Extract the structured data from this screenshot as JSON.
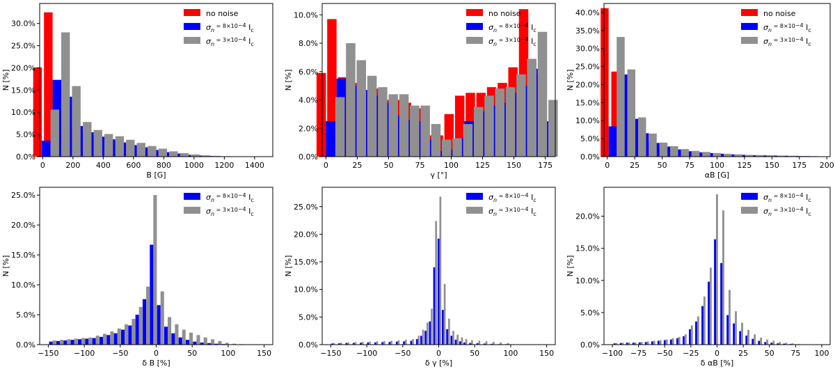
{
  "figure": {
    "rows": 2,
    "cols": 3
  },
  "legend_labels": {
    "no_noise": "no noise",
    "sigma_8": "σn = 8×10⁻⁴ Ic",
    "sigma_3": "σn = 3×10⁻⁴ Ic"
  },
  "colors": {
    "no_noise": "#ff0000",
    "sigma_8": "#0000ff",
    "sigma_3": "#909090"
  },
  "chart_data": [
    {
      "type": "bar",
      "id": "B",
      "xlabel": "B [G]",
      "ylabel": "N [%]",
      "xlim": [
        -20,
        1520
      ],
      "ylim": [
        0,
        34.5
      ],
      "xticks": [
        0,
        200,
        400,
        600,
        800,
        1000,
        1200,
        1400
      ],
      "yticks": [
        0,
        5,
        10,
        15,
        20,
        25,
        30
      ],
      "bin_width": 57,
      "legend_position": "top-right",
      "series": [
        {
          "name": "no noise",
          "key": "no_noise",
          "x": [
            23,
            94,
            165,
            237,
            308,
            379,
            451,
            522,
            593,
            665,
            736,
            807,
            879,
            950,
            1021,
            1093,
            1164,
            1235,
            1306,
            1378,
            1449
          ],
          "values": [
            20.1,
            32.5,
            12.6,
            6.1,
            5.4,
            4.6,
            4.3,
            3.6,
            2.9,
            2.2,
            1.6,
            1.0,
            0.7,
            0.4,
            0.2,
            0.15,
            0.08,
            0.04,
            0.02,
            0.01,
            0.01
          ]
        },
        {
          "name": "σn = 8×10⁻⁴ Ic",
          "key": "sigma_8",
          "x": [
            23,
            94,
            165,
            237,
            308,
            379,
            451,
            522,
            593,
            665,
            736,
            807,
            879,
            950,
            1021,
            1093,
            1164,
            1235,
            1306,
            1378,
            1449
          ],
          "values": [
            3.6,
            17.3,
            13.5,
            6.9,
            5.5,
            4.5,
            3.9,
            3.2,
            2.6,
            2.1,
            1.5,
            1.0,
            0.7,
            0.4,
            0.25,
            0.15,
            0.08,
            0.04,
            0.02,
            0.01,
            0.01
          ]
        },
        {
          "name": "σn = 3×10⁻⁴ Ic",
          "key": "sigma_3",
          "x": [
            23,
            94,
            165,
            237,
            308,
            379,
            451,
            522,
            593,
            665,
            736,
            807,
            879,
            950,
            1021,
            1093,
            1164,
            1235,
            1306,
            1378,
            1449
          ],
          "values": [
            10.6,
            28.0,
            15.9,
            7.8,
            6.0,
            5.1,
            4.6,
            3.8,
            3.1,
            2.4,
            1.8,
            1.2,
            0.8,
            0.5,
            0.3,
            0.18,
            0.1,
            0.05,
            0.03,
            0.01,
            0.01
          ]
        }
      ]
    },
    {
      "type": "bar",
      "id": "gamma",
      "xlabel": "γ [°]",
      "ylabel": "N [%]",
      "xlim": [
        -3,
        183
      ],
      "ylim": [
        0,
        10.8
      ],
      "xticks": [
        0,
        25,
        50,
        75,
        100,
        125,
        150,
        175
      ],
      "yticks": [
        0,
        2,
        4,
        6,
        8,
        10
      ],
      "bin_width": 7.5,
      "legend_position": "top-right",
      "series": [
        {
          "name": "no noise",
          "key": "no_noise",
          "x": [
            3.75,
            12.25,
            20.75,
            29.25,
            37.75,
            46.25,
            54.75,
            63.25,
            71.75,
            80.25,
            88.75,
            97.25,
            105.75,
            114.25,
            122.75,
            131.25,
            139.75,
            148.25,
            156.75,
            165.25,
            173.75
          ],
          "values": [
            5.9,
            9.7,
            5.6,
            5.2,
            4.7,
            4.8,
            4.0,
            4.0,
            3.8,
            3.4,
            1.5,
            1.5,
            3.0,
            4.3,
            4.5,
            4.5,
            4.9,
            5.2,
            6.3,
            10.4,
            5.8
          ]
        },
        {
          "name": "σn = 8×10⁻⁴ Ic",
          "key": "sigma_8",
          "x": [
            3.75,
            12.25,
            20.75,
            29.25,
            37.75,
            46.25,
            54.75,
            63.25,
            71.75,
            80.25,
            88.75,
            97.25,
            105.75,
            114.25,
            122.75,
            131.25,
            139.75,
            148.25,
            156.75,
            165.25,
            173.75
          ],
          "values": [
            2.5,
            5.5,
            5.0,
            4.7,
            4.3,
            3.8,
            2.9,
            2.6,
            2.5,
            1.2,
            0.4,
            0.5,
            1.3,
            2.5,
            3.2,
            3.6,
            3.8,
            4.5,
            5.0,
            6.2,
            2.5
          ]
        },
        {
          "name": "σn = 3×10⁻⁴ Ic",
          "key": "sigma_3",
          "x": [
            3.75,
            12.25,
            20.75,
            29.25,
            37.75,
            46.25,
            54.75,
            63.25,
            71.75,
            80.25,
            88.75,
            97.25,
            105.75,
            114.25,
            122.75,
            131.25,
            139.75,
            148.25,
            156.75,
            165.25,
            173.75
          ],
          "values": [
            4.2,
            8.0,
            6.8,
            5.7,
            4.9,
            4.4,
            4.4,
            3.6,
            3.6,
            2.3,
            1.2,
            1.3,
            2.3,
            3.5,
            4.3,
            4.8,
            4.9,
            5.8,
            6.9,
            8.8,
            4.0
          ]
        }
      ]
    },
    {
      "type": "bar",
      "id": "alphaB",
      "xlabel": "αB [G]",
      "ylabel": "N [%]",
      "xlim": [
        -3,
        203
      ],
      "ylim": [
        0,
        42.5
      ],
      "xticks": [
        0,
        25,
        50,
        75,
        100,
        125,
        150,
        175,
        200
      ],
      "yticks": [
        0,
        5,
        10,
        15,
        20,
        25,
        30,
        35,
        40
      ],
      "bin_width": 7.3,
      "legend_position": "top-right",
      "series": [
        {
          "name": "no noise",
          "key": "no_noise",
          "x": [
            4.9,
            14.6,
            24.4,
            34.1,
            43.9,
            53.6,
            63.4,
            73.1,
            82.9,
            92.6,
            102.4,
            112.1,
            121.9,
            131.6,
            141.4,
            151.1,
            160.9,
            170.6,
            180.4,
            190.1
          ],
          "values": [
            41.2,
            23.6,
            11.0,
            6.6,
            3.9,
            2.9,
            2.0,
            1.5,
            1.2,
            1.0,
            0.8,
            0.6,
            0.5,
            0.4,
            0.35,
            0.3,
            0.25,
            0.2,
            0.15,
            0.1
          ]
        },
        {
          "name": "σn = 8×10⁻⁴ Ic",
          "key": "sigma_8",
          "x": [
            4.9,
            14.6,
            24.4,
            34.1,
            43.9,
            53.6,
            63.4,
            73.1,
            82.9,
            92.6,
            102.4,
            112.1,
            121.9,
            131.6,
            141.4,
            151.1,
            160.9,
            170.6,
            180.4,
            190.1
          ],
          "values": [
            8.4,
            22.8,
            10.5,
            6.5,
            3.8,
            2.8,
            2.0,
            1.5,
            1.2,
            1.0,
            0.8,
            0.6,
            0.5,
            0.4,
            0.35,
            0.3,
            0.25,
            0.2,
            0.15,
            0.1
          ]
        },
        {
          "name": "σn = 3×10⁻⁴ Ic",
          "key": "sigma_3",
          "x": [
            4.9,
            14.6,
            24.4,
            34.1,
            43.9,
            53.6,
            63.4,
            73.1,
            82.9,
            92.6,
            102.4,
            112.1,
            121.9,
            131.6,
            141.4,
            151.1,
            160.9,
            170.6,
            180.4,
            190.1
          ],
          "values": [
            33.2,
            24.2,
            10.9,
            6.4,
            3.9,
            2.9,
            2.1,
            1.6,
            1.3,
            1.0,
            0.8,
            0.65,
            0.5,
            0.45,
            0.4,
            0.3,
            0.25,
            0.2,
            0.15,
            0.1
          ]
        }
      ]
    },
    {
      "type": "bar",
      "id": "dB",
      "xlabel": "δ B [%]",
      "ylabel": "N [%]",
      "xlim": [
        -162,
        162
      ],
      "ylim": [
        0,
        26.3
      ],
      "xticks": [
        -150,
        -100,
        -50,
        0,
        50,
        100,
        150
      ],
      "yticks": [
        0,
        5,
        10,
        15,
        20,
        25
      ],
      "bin_width": 4.9,
      "legend_position": "top-right",
      "series": [
        {
          "name": "σn = 8×10⁻⁴ Ic",
          "key": "sigma_8",
          "x": [
            -144,
            -134,
            -124,
            -114,
            -104,
            -94,
            -84,
            -74,
            -64,
            -54,
            -44,
            -34,
            -24,
            -14,
            -4,
            6,
            16,
            26,
            36,
            46,
            56,
            66,
            76,
            86,
            96,
            106,
            116,
            126,
            136,
            146
          ],
          "values": [
            0.5,
            0.6,
            0.7,
            0.8,
            0.9,
            1.0,
            1.1,
            1.3,
            1.6,
            1.9,
            2.5,
            3.2,
            5.0,
            7.6,
            16.7,
            6.6,
            3.0,
            1.9,
            1.2,
            0.8,
            0.5,
            0.35,
            0.25,
            0.15,
            0.1,
            0.05,
            0.03,
            0.02,
            0.01,
            0.01
          ]
        },
        {
          "name": "σn = 3×10⁻⁴ Ic",
          "key": "sigma_3",
          "x": [
            -144,
            -134,
            -124,
            -114,
            -104,
            -94,
            -84,
            -74,
            -64,
            -54,
            -44,
            -34,
            -24,
            -14,
            -4,
            6,
            16,
            26,
            36,
            46,
            56,
            66,
            76,
            86,
            96,
            106,
            116,
            126,
            136,
            146
          ],
          "values": [
            0.7,
            0.8,
            0.9,
            1.0,
            1.1,
            1.2,
            1.5,
            1.8,
            2.2,
            2.7,
            3.4,
            4.3,
            6.3,
            9.7,
            25.0,
            8.9,
            4.6,
            3.4,
            2.5,
            2.0,
            1.6,
            1.2,
            0.9,
            0.6,
            0.3,
            0.15,
            0.08,
            0.05,
            0.03,
            0.02
          ]
        }
      ]
    },
    {
      "type": "bar",
      "id": "dgamma",
      "xlabel": "δ γ [%]",
      "ylabel": "N [%]",
      "xlim": [
        -162,
        162
      ],
      "ylim": [
        0,
        28.5
      ],
      "xticks": [
        -150,
        -100,
        -50,
        0,
        50,
        100,
        150
      ],
      "yticks": [
        0,
        5,
        10,
        15,
        20,
        25
      ],
      "bin_width": 2.6,
      "legend_position": "top-right",
      "series": [
        {
          "name": "σn = 8×10⁻⁴ Ic",
          "key": "sigma_8",
          "x": [
            -147,
            -137,
            -127,
            -117,
            -107,
            -97,
            -87,
            -77,
            -67,
            -57,
            -47,
            -37,
            -29,
            -23,
            -17,
            -11,
            -5,
            1,
            7,
            13,
            19,
            25,
            31,
            37,
            45,
            55,
            65,
            75,
            85,
            95
          ],
          "values": [
            0.2,
            0.25,
            0.3,
            0.3,
            0.35,
            0.4,
            0.4,
            0.45,
            0.5,
            0.55,
            0.6,
            0.7,
            1.0,
            1.6,
            2.5,
            4.2,
            14.0,
            19.2,
            6.3,
            2.8,
            1.6,
            0.9,
            0.6,
            0.4,
            0.3,
            0.25,
            0.2,
            0.15,
            0.1,
            0.1
          ]
        },
        {
          "name": "σn = 3×10⁻⁴ Ic",
          "key": "sigma_3",
          "x": [
            -147,
            -137,
            -127,
            -117,
            -107,
            -97,
            -87,
            -77,
            -67,
            -57,
            -47,
            -37,
            -29,
            -23,
            -17,
            -11,
            -5,
            1,
            7,
            13,
            19,
            25,
            31,
            37,
            45,
            55,
            65,
            75,
            85,
            95
          ],
          "values": [
            0.3,
            0.35,
            0.4,
            0.45,
            0.5,
            0.55,
            0.6,
            0.65,
            0.7,
            0.8,
            0.9,
            1.0,
            1.6,
            2.7,
            4.0,
            6.5,
            22.4,
            26.8,
            11.0,
            4.7,
            2.5,
            1.8,
            1.3,
            1.0,
            0.8,
            0.7,
            0.6,
            0.5,
            0.4,
            0.3
          ]
        }
      ]
    },
    {
      "type": "bar",
      "id": "dalphaB",
      "xlabel": "δ αB [%]",
      "ylabel": "N [%]",
      "xlim": [
        -108,
        108
      ],
      "ylim": [
        0,
        24.5
      ],
      "xticks": [
        -100,
        -75,
        -50,
        -25,
        0,
        25,
        50,
        75,
        100
      ],
      "yticks": [
        0,
        5,
        10,
        15,
        20
      ],
      "bin_width": 1.9,
      "legend_position": "top-right",
      "series": [
        {
          "name": "σn = 8×10⁻⁴ Ic",
          "key": "sigma_8",
          "x": [
            -97,
            -91,
            -85,
            -79,
            -73,
            -67,
            -61,
            -55,
            -49,
            -43,
            -37,
            -31,
            -25,
            -19,
            -13,
            -7,
            -1,
            5,
            11,
            17,
            23,
            29,
            35,
            41,
            47,
            53,
            59,
            65,
            71,
            77,
            83
          ],
          "values": [
            0.2,
            0.25,
            0.3,
            0.3,
            0.35,
            0.4,
            0.5,
            0.6,
            0.7,
            0.8,
            1.0,
            1.3,
            2.4,
            3.6,
            6.0,
            9.8,
            16.4,
            12.7,
            4.6,
            3.3,
            2.1,
            1.4,
            0.9,
            0.6,
            0.4,
            0.3,
            0.2,
            0.15,
            0.1,
            0.05,
            0.03
          ]
        },
        {
          "name": "σn = 3×10⁻⁴ Ic",
          "key": "sigma_3",
          "x": [
            -97,
            -91,
            -85,
            -79,
            -73,
            -67,
            -61,
            -55,
            -49,
            -43,
            -37,
            -31,
            -25,
            -19,
            -13,
            -7,
            -1,
            5,
            11,
            17,
            23,
            29,
            35,
            41,
            47,
            53,
            59,
            65,
            71,
            77,
            83
          ],
          "values": [
            0.25,
            0.3,
            0.35,
            0.35,
            0.4,
            0.5,
            0.6,
            0.7,
            0.8,
            1.0,
            1.2,
            1.6,
            3.0,
            4.4,
            7.5,
            12.0,
            23.4,
            20.9,
            8.5,
            5.2,
            3.4,
            2.3,
            1.6,
            1.1,
            0.8,
            0.6,
            0.4,
            0.3,
            0.2,
            0.1,
            0.05
          ]
        }
      ]
    }
  ]
}
